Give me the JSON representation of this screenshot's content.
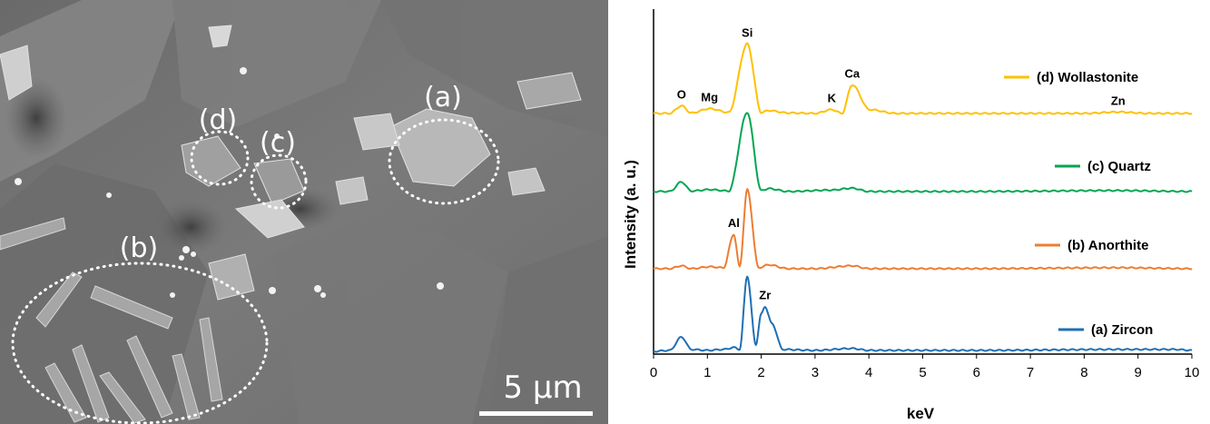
{
  "micrograph": {
    "labels": [
      "(a)",
      "(b)",
      "(c)",
      "(d)"
    ],
    "scale_bar": "5 µm"
  },
  "chart_data": {
    "type": "line",
    "xlabel": "keV",
    "ylabel": "Intensity (a. u.)",
    "xlim": [
      0,
      10
    ],
    "xticks": [
      "0",
      "1",
      "2",
      "3",
      "4",
      "5",
      "6",
      "7",
      "8",
      "9",
      "10"
    ],
    "series": [
      {
        "name": "(d) Wollastonite",
        "color": "#FFC000",
        "x": [
          0,
          0.3,
          0.52,
          0.7,
          1.04,
          1.4,
          1.74,
          2.0,
          2.14,
          2.5,
          3.0,
          3.31,
          3.5,
          3.69,
          4.01,
          4.5,
          6.0,
          8.0,
          8.63,
          9.2,
          10.0
        ],
        "y": [
          0.2,
          0.2,
          1.0,
          0.25,
          0.7,
          0.3,
          7.5,
          0.3,
          0.5,
          0.25,
          0.2,
          0.6,
          0.2,
          3.2,
          0.6,
          0.2,
          0.2,
          0.2,
          0.35,
          0.2,
          0.2
        ]
      },
      {
        "name": "(c) Quartz",
        "color": "#00A651",
        "x": [
          0,
          0.3,
          0.52,
          0.7,
          1.04,
          1.4,
          1.74,
          2.0,
          2.14,
          2.5,
          3.31,
          3.69,
          4.0,
          6.0,
          8.63,
          10.0
        ],
        "y": [
          0.2,
          0.2,
          1.2,
          0.25,
          0.4,
          0.25,
          8.5,
          0.3,
          0.5,
          0.2,
          0.35,
          0.55,
          0.2,
          0.2,
          0.3,
          0.2
        ]
      },
      {
        "name": "(b) Anorthite",
        "color": "#ED7D31",
        "x": [
          0,
          0.3,
          0.52,
          0.7,
          1.04,
          1.3,
          1.49,
          1.6,
          1.74,
          1.95,
          2.14,
          2.5,
          3.0,
          3.69,
          4.0,
          6.0,
          8.63,
          10.0
        ],
        "y": [
          0.2,
          0.2,
          0.5,
          0.2,
          0.4,
          0.3,
          3.8,
          0.4,
          8.5,
          0.3,
          0.6,
          0.2,
          0.2,
          0.5,
          0.2,
          0.2,
          0.3,
          0.2
        ]
      },
      {
        "name": "(a) Zircon",
        "color": "#1F6FB4",
        "x": [
          0,
          0.3,
          0.52,
          0.7,
          1.0,
          1.3,
          1.5,
          1.6,
          1.74,
          1.9,
          2.0,
          2.07,
          2.2,
          2.4,
          3.0,
          3.69,
          4.0,
          6.0,
          8.63,
          9.7,
          10.0
        ],
        "y": [
          0.1,
          0.2,
          1.6,
          0.3,
          0.2,
          0.3,
          0.5,
          0.3,
          8.0,
          0.8,
          4.0,
          4.8,
          3.0,
          0.3,
          0.2,
          0.4,
          0.2,
          0.2,
          0.3,
          0.3,
          0.2
        ]
      }
    ],
    "element_labels": [
      {
        "text": "Si",
        "x": 1.74,
        "series": 0
      },
      {
        "text": "O",
        "x": 0.52,
        "series": 0
      },
      {
        "text": "Mg",
        "x": 1.04,
        "series": 0
      },
      {
        "text": "K",
        "x": 3.31,
        "series": 0
      },
      {
        "text": "Ca",
        "x": 3.69,
        "series": 0
      },
      {
        "text": "Zn",
        "x": 8.63,
        "series": 0
      },
      {
        "text": "Al",
        "x": 1.49,
        "series": 2
      },
      {
        "text": "Zr",
        "x": 2.07,
        "series": 3
      }
    ],
    "legend_placement": "right"
  }
}
